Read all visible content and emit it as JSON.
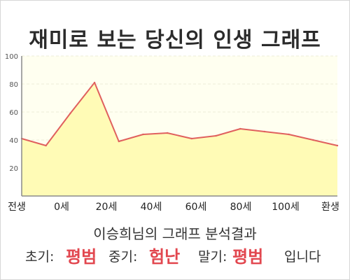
{
  "page": {
    "title": "재미로 보는 당신의 인생 그래프"
  },
  "chart_data": {
    "type": "area",
    "x": [
      0,
      1,
      2,
      3,
      4,
      5,
      6,
      7,
      8,
      9,
      10,
      11,
      12,
      13
    ],
    "values": [
      41,
      36,
      59,
      81,
      39,
      44,
      45,
      41,
      43,
      48,
      46,
      44,
      40,
      36
    ],
    "ylim": [
      0,
      100
    ],
    "yticks": [
      20,
      40,
      60,
      80,
      100
    ],
    "xtick_labels": [
      "전생",
      "0세",
      "20세",
      "40세",
      "60세",
      "80세",
      "100세",
      "환생"
    ],
    "grid": true,
    "colors": {
      "line": "#e0605e",
      "fill": "#fffbb6",
      "plot_bg": "#fffff0",
      "grid": "#ececd8"
    }
  },
  "summary": {
    "heading": "이승희님의 그래프 분석결과",
    "early_label": "초기:",
    "early_value": "평범",
    "mid_label": "중기:",
    "mid_value": "험난",
    "late_label": "말기:",
    "late_value": "평범",
    "ending": "입니다"
  }
}
